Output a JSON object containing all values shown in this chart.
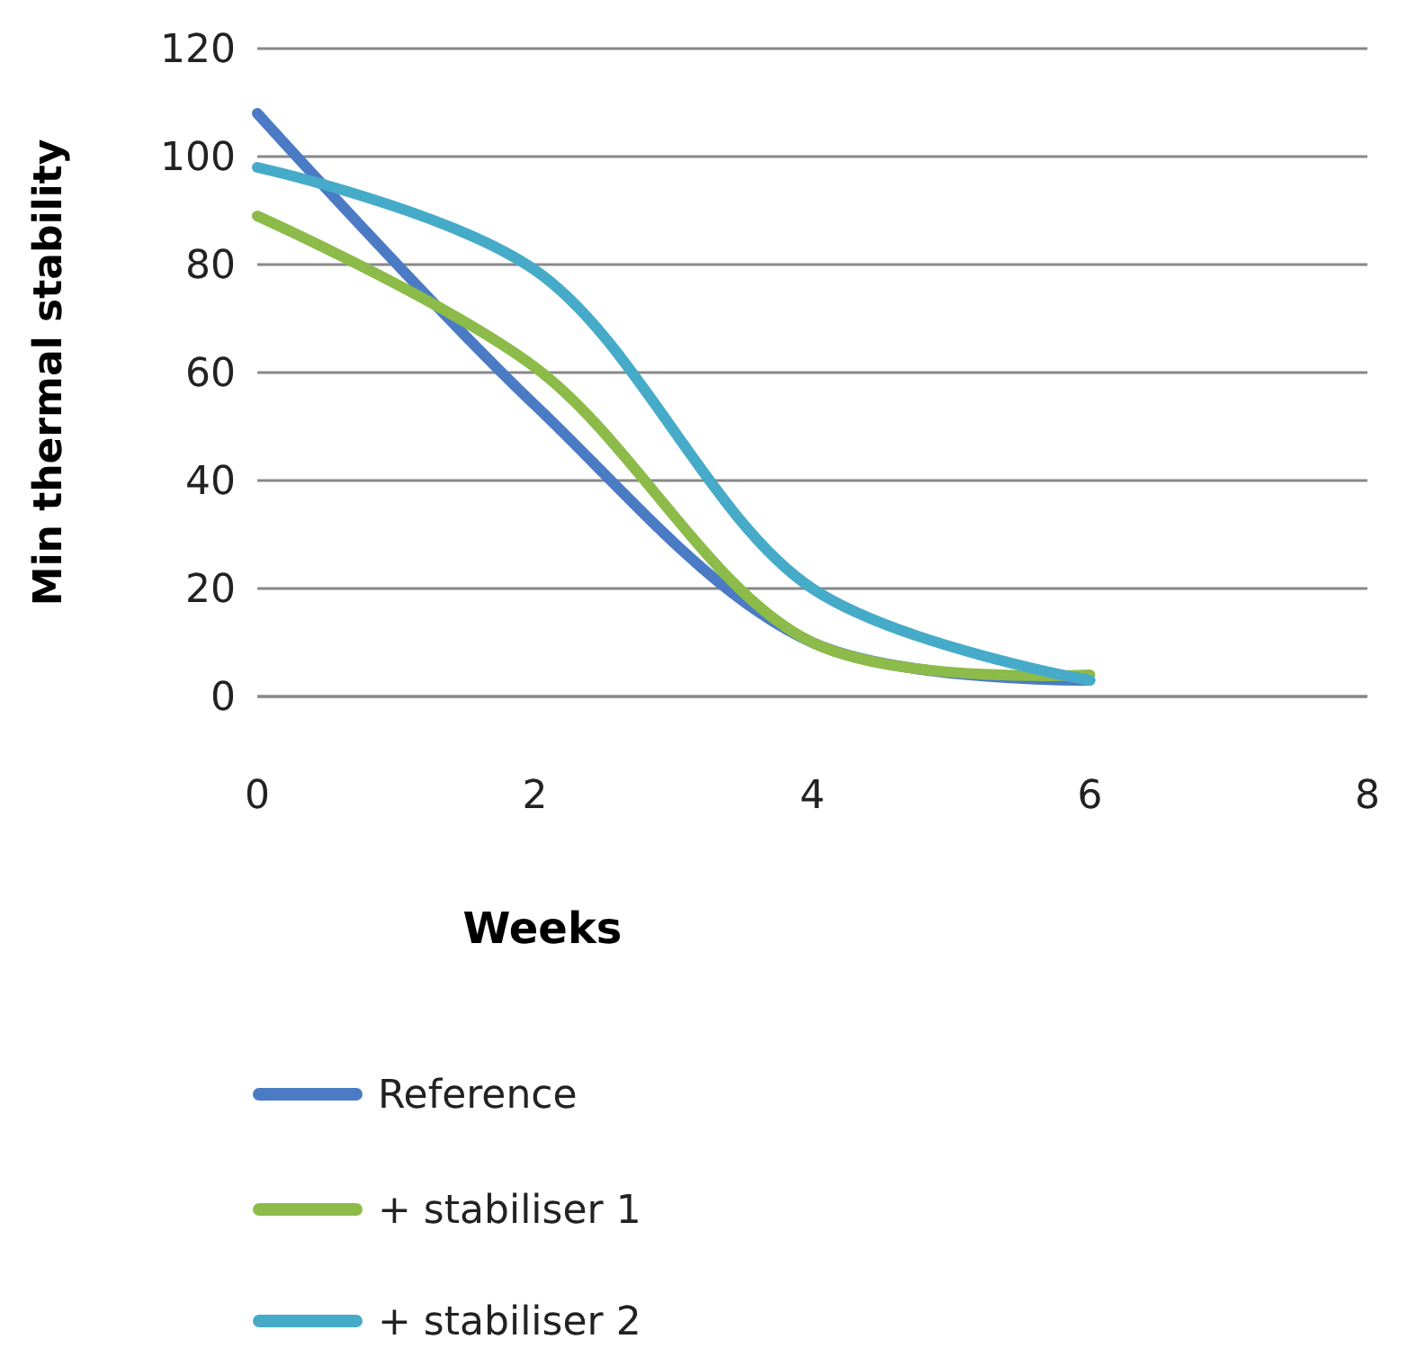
{
  "chart_data": {
    "type": "line",
    "xlabel": "Weeks",
    "ylabel": "Min thermal stability",
    "x": [
      0,
      2,
      4,
      6
    ],
    "series": [
      {
        "name": "Reference",
        "color": "#4a7bc4",
        "values": [
          108,
          54,
          10,
          3
        ]
      },
      {
        "name": "+ stabiliser 1",
        "color": "#8cbb4a",
        "values": [
          89,
          61,
          10,
          4
        ]
      },
      {
        "name": "+ stabiliser 2",
        "color": "#46abc9",
        "values": [
          98,
          79,
          20,
          3
        ]
      }
    ],
    "xlim": [
      0,
      8
    ],
    "xticks": [
      0,
      2,
      4,
      6,
      8
    ],
    "ylim": [
      0,
      120
    ],
    "yticks": [
      0,
      20,
      40,
      60,
      80,
      100,
      120
    ],
    "grid": "y",
    "legend": "bottom",
    "marker": "none",
    "line_style": "solid"
  }
}
